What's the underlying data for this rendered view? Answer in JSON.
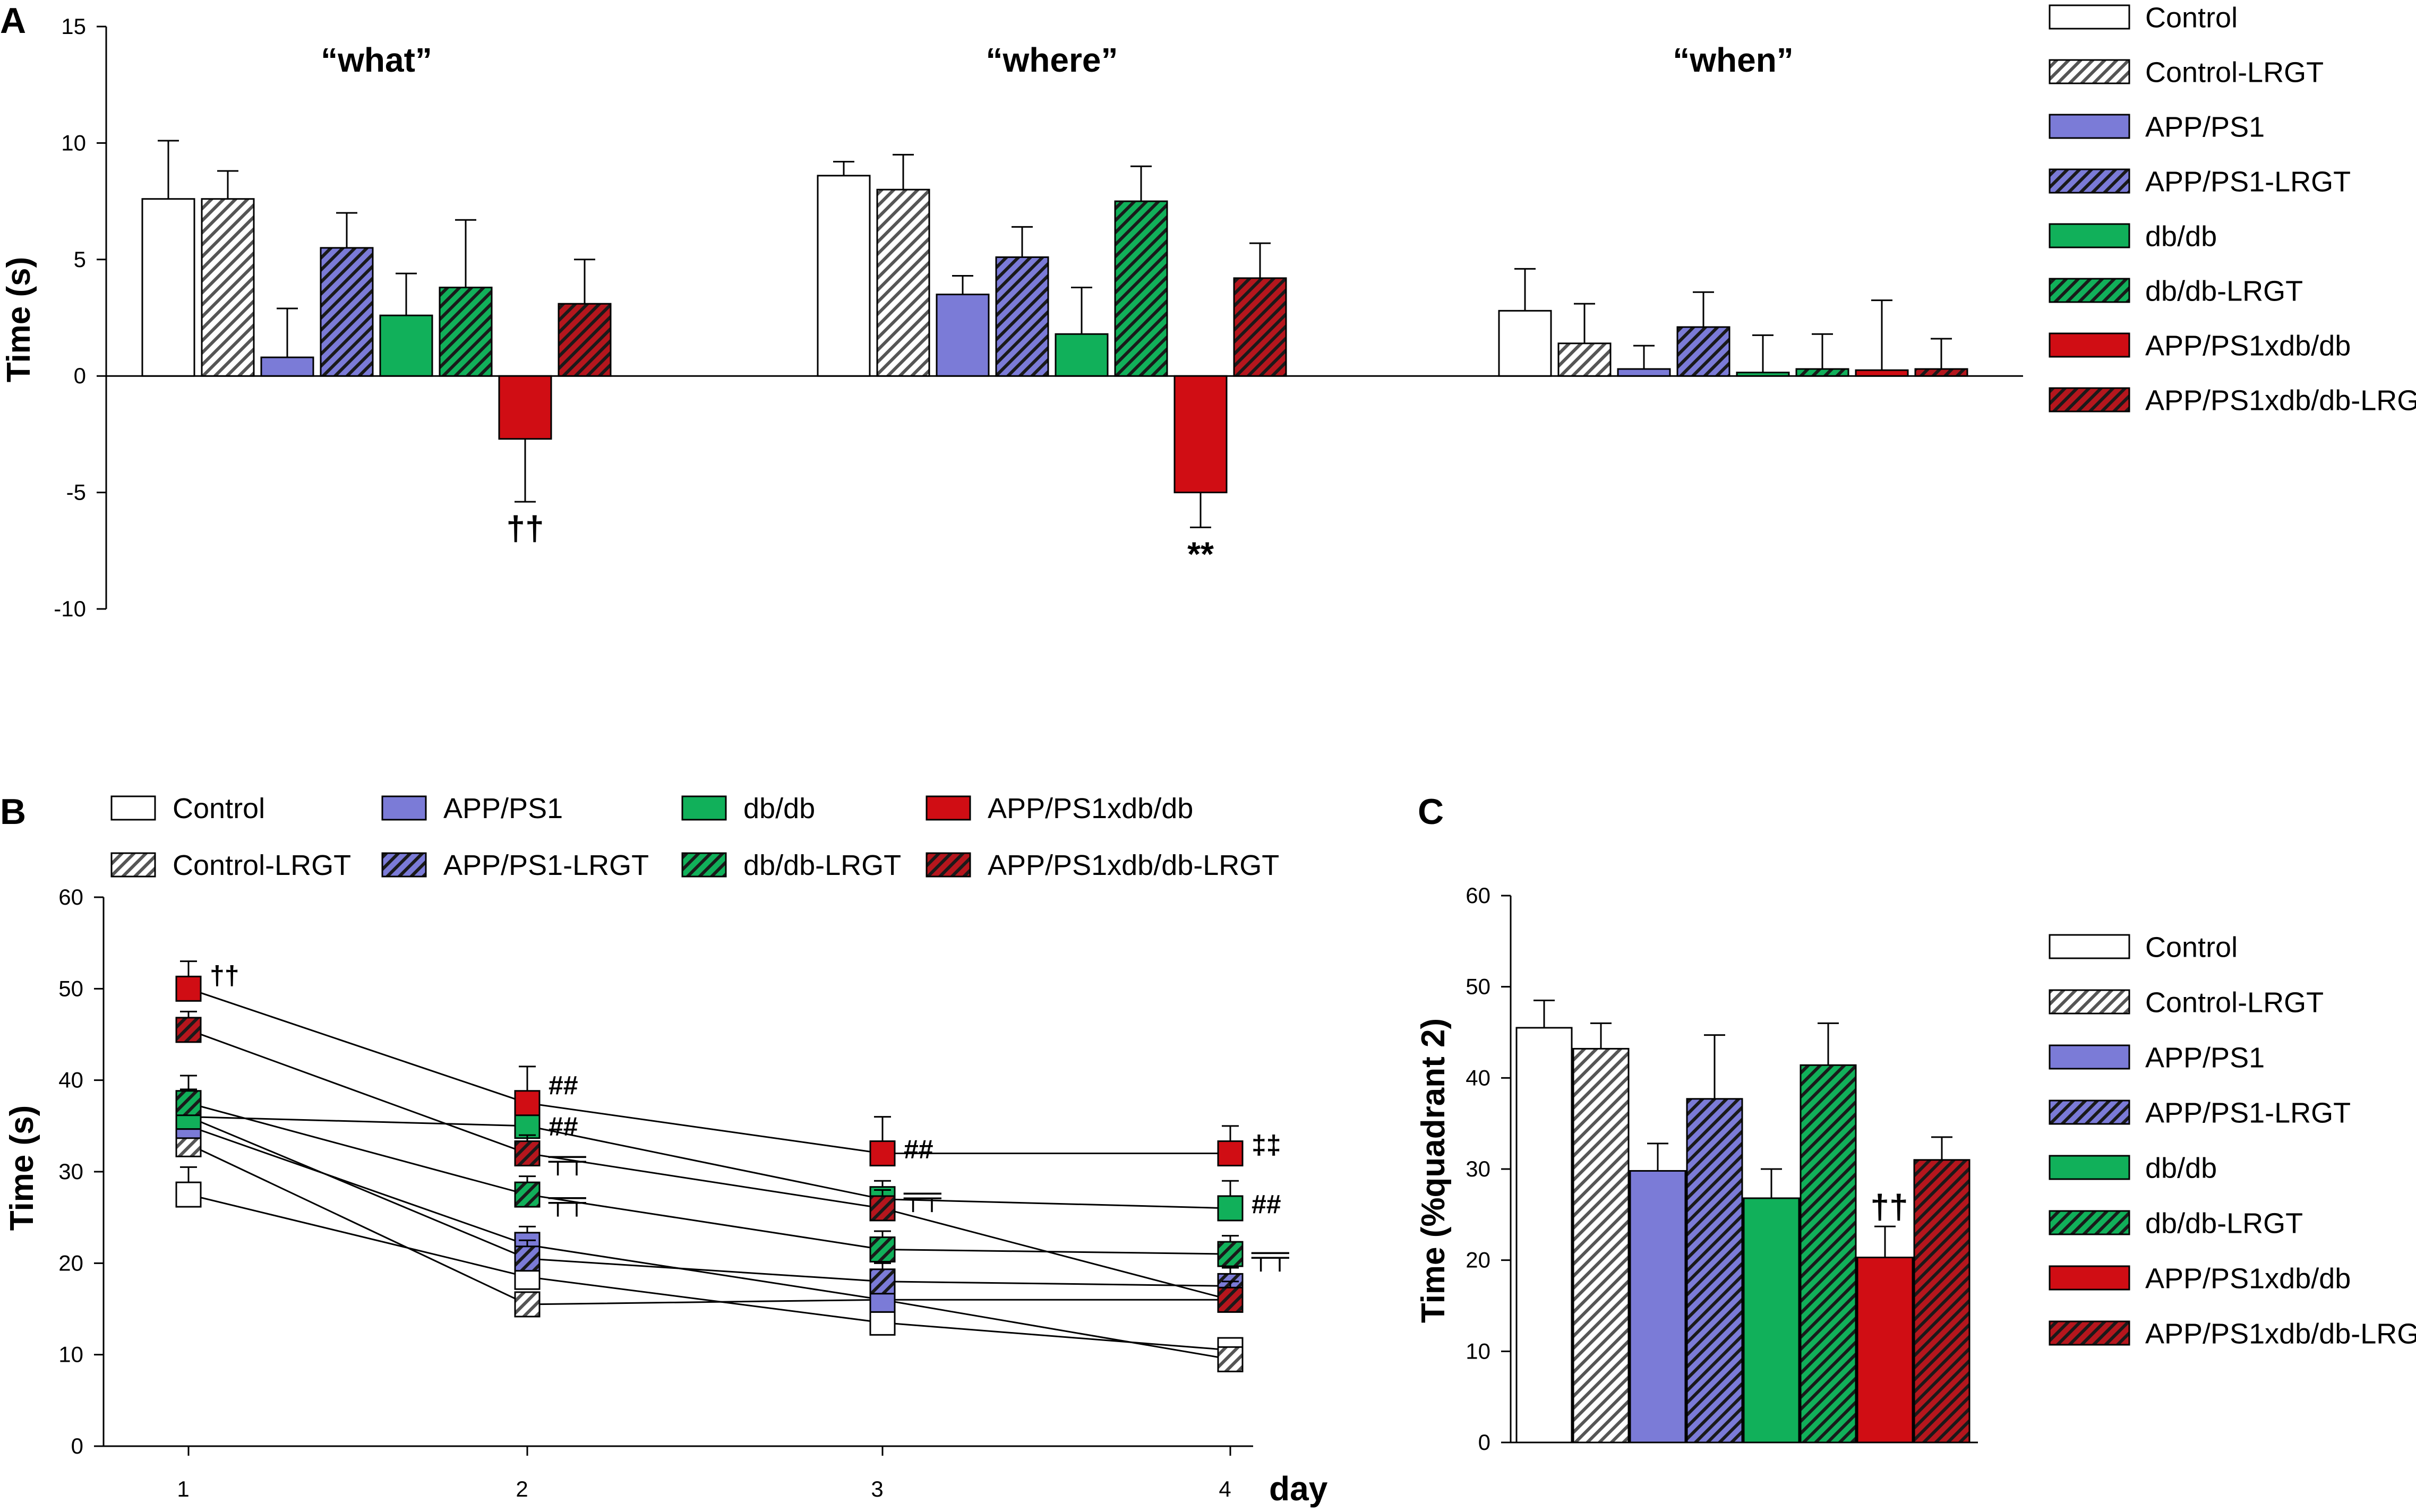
{
  "colors": {
    "Control": "#ffffff",
    "Control-LRGT": "#ffffff",
    "APP/PS1": "#7b7bd7",
    "APP/PS1-LRGT": "#7b7bd7",
    "db/db": "#11b05a",
    "db/db-LRGT": "#11b05a",
    "APP/PS1xdb/db": "#d00d14",
    "APP/PS1xdb/db-LRGT": "#b5161d",
    "hatch_light": "#ffffff",
    "hatch_dark": "#1a1a1a"
  },
  "groups": [
    {
      "name": "Control",
      "hatched": false
    },
    {
      "name": "Control-LRGT",
      "hatched": true
    },
    {
      "name": "APP/PS1",
      "hatched": false
    },
    {
      "name": "APP/PS1-LRGT",
      "hatched": true
    },
    {
      "name": "db/db",
      "hatched": false
    },
    {
      "name": "db/db-LRGT",
      "hatched": true
    },
    {
      "name": "APP/PS1xdb/db",
      "hatched": false
    },
    {
      "name": "APP/PS1xdb/db-LRGT",
      "hatched": true
    }
  ],
  "panelA": {
    "label": "A",
    "chart_data": {
      "type": "bar",
      "ylabel": "Time (s)",
      "ylim": [
        -10,
        15
      ],
      "yticks": [
        15,
        10,
        5,
        0,
        -5,
        -10
      ],
      "categories": [
        "“what”",
        "“where”",
        "“when”"
      ],
      "series": [
        {
          "name": "Control",
          "values": [
            7.6,
            8.6,
            2.8
          ],
          "errors": [
            2.5,
            0.6,
            1.8
          ]
        },
        {
          "name": "Control-LRGT",
          "values": [
            7.6,
            8.0,
            1.4
          ],
          "errors": [
            1.2,
            1.5,
            1.7
          ]
        },
        {
          "name": "APP/PS1",
          "values": [
            0.8,
            3.5,
            0.3
          ],
          "errors": [
            2.1,
            0.8,
            1.0
          ]
        },
        {
          "name": "APP/PS1-LRGT",
          "values": [
            5.5,
            5.1,
            2.1
          ],
          "errors": [
            1.5,
            1.3,
            1.5
          ]
        },
        {
          "name": "db/db",
          "values": [
            2.6,
            1.8,
            0.15
          ],
          "errors": [
            1.8,
            2.0,
            1.6
          ]
        },
        {
          "name": "db/db-LRGT",
          "values": [
            3.8,
            7.5,
            0.3
          ],
          "errors": [
            2.9,
            1.5,
            1.5
          ]
        },
        {
          "name": "APP/PS1xdb/db",
          "values": [
            -2.7,
            -5.0,
            0.25
          ],
          "errors": [
            2.7,
            1.5,
            3.0
          ]
        },
        {
          "name": "APP/PS1xdb/db-LRGT",
          "values": [
            3.1,
            4.2,
            0.3
          ],
          "errors": [
            1.9,
            1.5,
            1.3
          ]
        }
      ],
      "annotations": [
        {
          "text": "††",
          "category": 0,
          "series": 6
        },
        {
          "text": "**",
          "category": 1,
          "series": 6
        }
      ]
    }
  },
  "panelB": {
    "label": "B",
    "chart_data": {
      "type": "line",
      "ylabel": "Time (s)",
      "xlabel": "day",
      "x": [
        1,
        2,
        3,
        4
      ],
      "ylim": [
        0,
        60
      ],
      "yticks": [
        0,
        10,
        20,
        30,
        40,
        50,
        60
      ],
      "series": [
        {
          "name": "Control",
          "values": [
            27.5,
            18.5,
            13.5,
            10.5
          ],
          "errors": [
            3,
            2,
            2,
            1
          ]
        },
        {
          "name": "Control-LRGT",
          "values": [
            33,
            15.5,
            16,
            9.5
          ],
          "errors": [
            2,
            1,
            1,
            1
          ]
        },
        {
          "name": "APP/PS1",
          "values": [
            35,
            22,
            16,
            16
          ],
          "errors": [
            3,
            2,
            2,
            2
          ]
        },
        {
          "name": "APP/PS1-LRGT",
          "values": [
            36,
            20.5,
            18,
            17.5
          ],
          "errors": [
            2,
            2,
            2,
            2
          ]
        },
        {
          "name": "db/db",
          "values": [
            36,
            35,
            27,
            26
          ],
          "errors": [
            3,
            3,
            2,
            3
          ]
        },
        {
          "name": "db/db-LRGT",
          "values": [
            37.5,
            27.5,
            21.5,
            21
          ],
          "errors": [
            3,
            2,
            2,
            2
          ]
        },
        {
          "name": "APP/PS1xdb/db",
          "values": [
            50,
            37.5,
            32,
            32
          ],
          "errors": [
            3,
            4,
            4,
            3
          ]
        },
        {
          "name": "APP/PS1xdb/db-LRGT",
          "values": [
            45.5,
            32,
            26,
            16
          ],
          "errors": [
            2,
            2,
            2,
            2
          ]
        }
      ],
      "annotations": [
        {
          "text": "††",
          "x": 1,
          "y": 51.5
        },
        {
          "text": "##",
          "x": 2,
          "y": 39.5
        },
        {
          "text": "##",
          "x": 2,
          "y": 35
        },
        {
          "text": "╤╤",
          "x": 2,
          "y": 31.5
        },
        {
          "text": "╤╤",
          "x": 2,
          "y": 27
        },
        {
          "text": "##",
          "x": 3,
          "y": 32.5
        },
        {
          "text": "╤╤",
          "x": 3,
          "y": 27.5
        },
        {
          "text": "‡‡",
          "x": 4,
          "y": 33
        },
        {
          "text": "##",
          "x": 4,
          "y": 26.5
        },
        {
          "text": "╤╤",
          "x": 4,
          "y": 21
        }
      ]
    }
  },
  "panelC": {
    "label": "C",
    "chart_data": {
      "type": "bar",
      "ylabel": "Time (%quadrant 2)",
      "ylim": [
        0,
        60
      ],
      "yticks": [
        0,
        10,
        20,
        30,
        40,
        50,
        60
      ],
      "categories": [
        "Control",
        "Control-LRGT",
        "APP/PS1",
        "APP/PS1-LRGT",
        "db/db",
        "db/db-LRGT",
        "APP/PS1xdb/db",
        "APP/PS1xdb/db-LRGT"
      ],
      "values": [
        45.5,
        43.2,
        29.8,
        37.7,
        26.8,
        41.4,
        20.3,
        31.0
      ],
      "errors": [
        3,
        2.8,
        3,
        7,
        3.2,
        4.6,
        3.4,
        2.5
      ],
      "annotations": [
        {
          "text": "††",
          "index": 6
        }
      ]
    }
  }
}
